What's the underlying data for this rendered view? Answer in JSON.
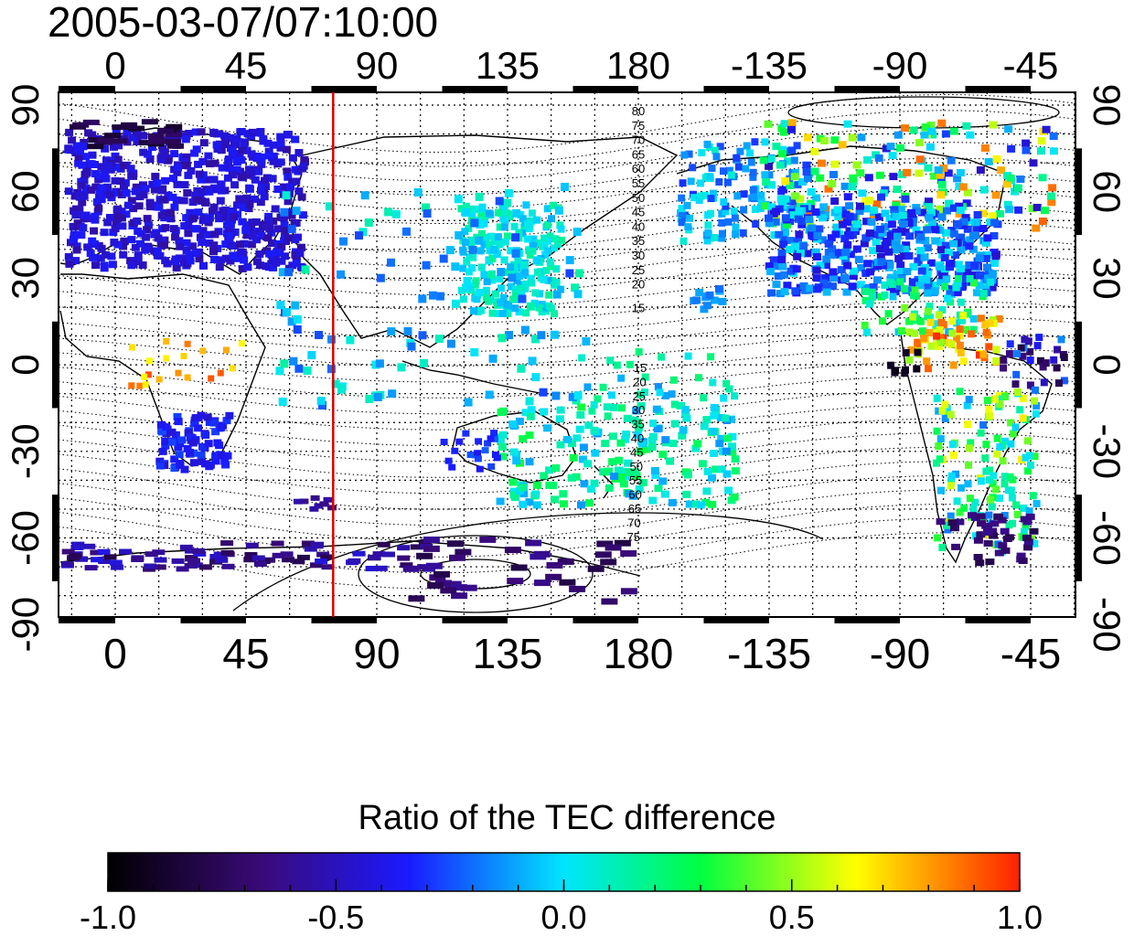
{
  "title": "2005-03-07/07:10:00",
  "map": {
    "top_ticks": [
      "0",
      "45",
      "90",
      "135",
      "180",
      "-135",
      "-90",
      "-45"
    ],
    "bottom_ticks": [
      "0",
      "45",
      "90",
      "135",
      "180",
      "-135",
      "-90",
      "-45"
    ],
    "left_ticks": [
      "90",
      "60",
      "30",
      "0",
      "-30",
      "-60",
      "-90"
    ],
    "right_ticks": [
      "90",
      "60",
      "30",
      "0",
      "-30",
      "-60",
      "-90"
    ],
    "contour_labels_north": [
      "80",
      "75",
      "70",
      "65",
      "60",
      "55",
      "50",
      "45",
      "40",
      "35",
      "30",
      "25",
      "20",
      "15"
    ],
    "contour_labels_south": [
      "15",
      "20",
      "25",
      "30",
      "35",
      "40",
      "45",
      "50",
      "55",
      "60",
      "65",
      "70",
      "75"
    ],
    "meridian_marker_color": "#dd0000",
    "meridian_marker_longitude": 75
  },
  "colorbar": {
    "title": "Ratio of the TEC difference",
    "ticks": [
      "-1.0",
      "-0.5",
      "0.0",
      "0.5",
      "1.0"
    ],
    "min": -1.0,
    "max": 1.0,
    "colors": [
      "#000000",
      "#3a0a7a",
      "#1a1aff",
      "#00e5ff",
      "#00ff40",
      "#ffff00",
      "#ff2000"
    ]
  }
}
